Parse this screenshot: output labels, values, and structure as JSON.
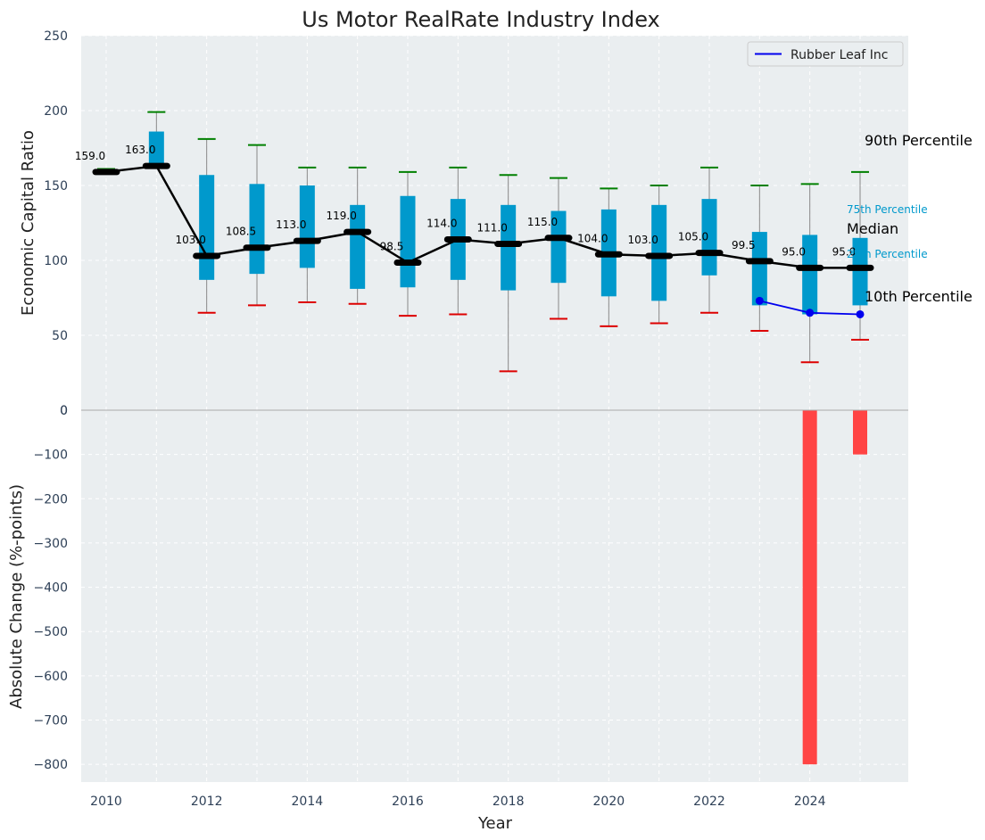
{
  "chart_data": {
    "type": "box",
    "title": "Us Motor RealRate Industry Index",
    "xlabel": "Year",
    "x_ticks": [
      "2010",
      "2012",
      "2014",
      "2016",
      "2018",
      "2020",
      "2022",
      "2024"
    ],
    "top_panel": {
      "ylabel": "Economic Capital Ratio",
      "ylim": [
        0,
        250
      ],
      "y_ticks": [
        0,
        50,
        100,
        150,
        200,
        250
      ],
      "grid": true,
      "legend": {
        "placement": "top-right",
        "entries": [
          "Rubber Leaf Inc"
        ]
      },
      "years": [
        2010,
        2011,
        2012,
        2013,
        2014,
        2015,
        2016,
        2017,
        2018,
        2019,
        2020,
        2021,
        2022,
        2023,
        2024,
        2025
      ],
      "p10": [
        158,
        162,
        65,
        70,
        72,
        71,
        63,
        64,
        26,
        61,
        56,
        58,
        65,
        53,
        32,
        47
      ],
      "p25": [
        158,
        162,
        87,
        91,
        95,
        81,
        82,
        87,
        80,
        85,
        76,
        73,
        90,
        70,
        64,
        70
      ],
      "median": [
        159.0,
        163.0,
        103.0,
        108.5,
        113.0,
        119.0,
        98.5,
        114.0,
        111.0,
        115.0,
        104.0,
        103.0,
        105.0,
        99.5,
        95.0,
        95.0
      ],
      "median_labels": [
        "159.0",
        "163.0",
        "103.0",
        "108.5",
        "113.0",
        "119.0",
        "98.5",
        "114.0",
        "111.0",
        "115.0",
        "104.0",
        "103.0",
        "105.0",
        "99.5",
        "95.0",
        "95.0"
      ],
      "p75": [
        160,
        186,
        157,
        151,
        150,
        137,
        143,
        141,
        137,
        133,
        134,
        137,
        141,
        119,
        117,
        115
      ],
      "p90": [
        161,
        199,
        181,
        177,
        162,
        162,
        159,
        162,
        157,
        155,
        148,
        150,
        162,
        150,
        151,
        159
      ],
      "series": [
        {
          "name": "Rubber Leaf Inc",
          "color": "#0000ee",
          "x": [
            2023,
            2024,
            2025
          ],
          "y": [
            73,
            65,
            64
          ]
        }
      ],
      "annotations": {
        "p90": "90th Percentile",
        "p75": "75th Percentile",
        "median": "Median",
        "p25": "25th Percentile",
        "p10": "10th Percentile"
      }
    },
    "bottom_panel": {
      "ylabel": "Absolute Change (%-points)",
      "ylim": [
        -840,
        0
      ],
      "y_ticks": [
        0,
        -100,
        -200,
        -300,
        -400,
        -500,
        -600,
        -700,
        -800
      ],
      "y_tick_labels": [
        "0",
        "−100",
        "−200",
        "−300",
        "−400",
        "−500",
        "−600",
        "−700",
        "−800"
      ],
      "bars": [
        {
          "x": 2024,
          "value": -800
        },
        {
          "x": 2025,
          "value": -100
        }
      ]
    },
    "colors": {
      "box_fill": "#0099cc",
      "median_line": "#000000",
      "whisker": "#888888",
      "p90_cap": "#008000",
      "p10_cap": "#dd0000",
      "bar": "#ff4444",
      "plot_bg": "#eaeef0",
      "tick_text": "#2e4057",
      "pct_label": "#0099cc"
    }
  }
}
